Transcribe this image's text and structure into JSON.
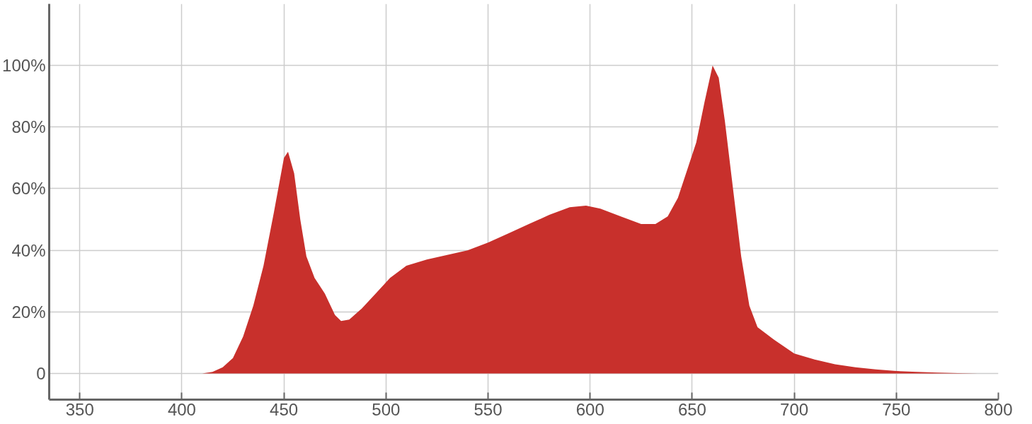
{
  "chart_data": {
    "type": "area",
    "x": [
      350,
      400,
      410,
      415,
      420,
      425,
      430,
      435,
      440,
      445,
      450,
      452,
      455,
      458,
      461,
      465,
      470,
      475,
      478,
      482,
      488,
      495,
      502,
      510,
      520,
      530,
      540,
      550,
      560,
      570,
      580,
      590,
      598,
      605,
      615,
      625,
      632,
      638,
      643,
      648,
      652,
      656,
      660,
      663,
      666,
      670,
      674,
      678,
      682,
      690,
      700,
      710,
      720,
      730,
      740,
      750,
      760,
      770,
      780,
      790,
      800
    ],
    "series": [
      {
        "color": "#c8302c",
        "values": [
          0,
          0,
          0,
          0.5,
          2,
          5,
          12,
          22,
          35,
          52,
          70,
          72,
          65,
          50,
          38,
          31,
          26,
          19,
          17,
          17.5,
          21,
          26,
          31,
          35,
          37,
          38.5,
          40,
          42.5,
          45.5,
          48.5,
          51.5,
          54,
          54.5,
          53.5,
          51,
          48.5,
          48.5,
          51,
          57,
          67,
          75,
          88,
          100,
          96,
          82,
          60,
          38,
          22,
          15,
          11,
          6.5,
          4.5,
          3,
          2,
          1.3,
          0.8,
          0.5,
          0.3,
          0.1,
          0,
          0
        ]
      }
    ],
    "xlim": [
      335,
      800
    ],
    "ylim": [
      -8.5,
      120
    ],
    "xticks": [
      350,
      400,
      450,
      500,
      550,
      600,
      650,
      700,
      750,
      800
    ],
    "yticks": [
      0,
      {
        "value": 20,
        "label": "20%"
      },
      {
        "value": 40,
        "label": "40%"
      },
      {
        "value": 60,
        "label": "60%"
      },
      {
        "value": 80,
        "label": "80%"
      },
      {
        "value": 100,
        "label": "100%"
      }
    ],
    "grid": true
  }
}
